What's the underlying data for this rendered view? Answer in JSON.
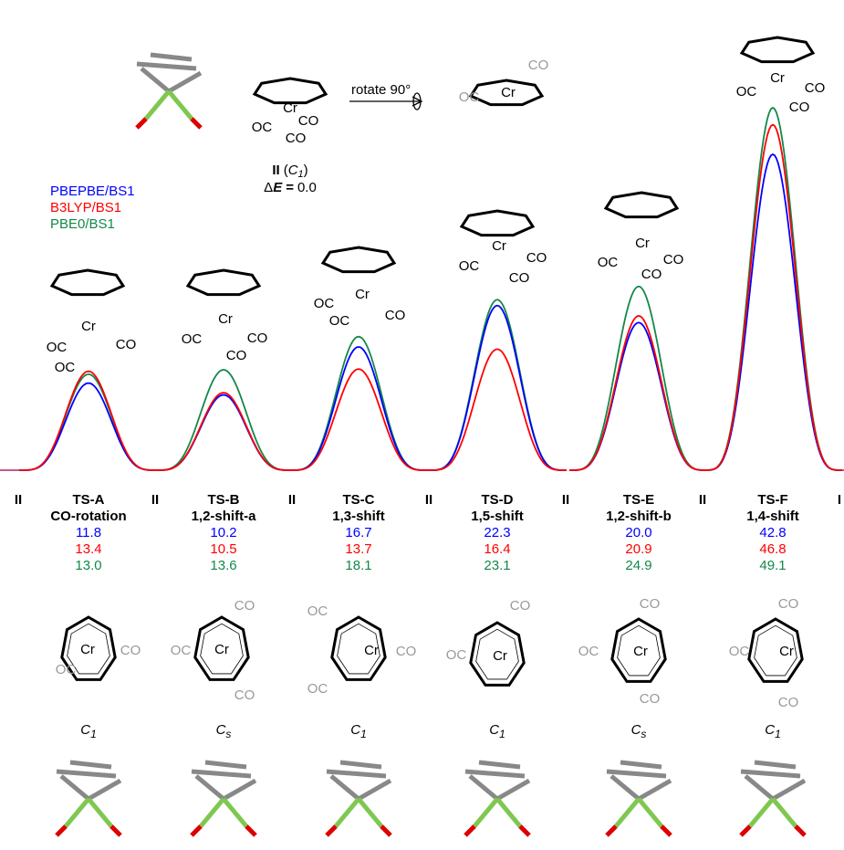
{
  "chart_data": {
    "type": "energy-profile",
    "ylim": [
      0,
      63.7
    ],
    "categories": [
      "TS-A",
      "TS-B",
      "TS-C",
      "TS-D",
      "TS-E",
      "TS-F"
    ],
    "subtitles": [
      "CO-rotation",
      "1,2-shift-a",
      "1,3-shift",
      "1,5-shift",
      "1,2-shift-b",
      "1,4-shift"
    ],
    "minima": [
      "II",
      "II",
      "II",
      "II",
      "II",
      "II",
      "I"
    ],
    "series": [
      {
        "name": "PBE0/BS1",
        "color": "#13884a",
        "values": [
          13.0,
          13.6,
          18.1,
          23.1,
          24.9,
          49.1
        ],
        "value_labels": [
          "13.0",
          "13.6",
          "18.1",
          "23.1",
          "24.9",
          "49.1"
        ]
      },
      {
        "name": "PBEPBE/BS1",
        "color": "#0000ff",
        "values": [
          11.8,
          10.2,
          16.7,
          22.3,
          20.0,
          42.8
        ],
        "value_labels": [
          "11.8",
          "10.2",
          "16.7",
          "22.3",
          "20.0",
          "42.8"
        ]
      },
      {
        "name": "B3LYP/BS1",
        "color": "#ff0000",
        "values": [
          13.4,
          10.5,
          13.7,
          16.4,
          20.9,
          46.8
        ],
        "value_labels": [
          "13.4",
          "10.5",
          "13.7",
          "16.4",
          "20.9",
          "46.8"
        ]
      }
    ],
    "symmetry": [
      {
        "symbol": "C",
        "subscript": "1"
      },
      {
        "symbol": "C",
        "subscript": "s"
      },
      {
        "symbol": "C",
        "subscript": "1"
      },
      {
        "symbol": "C",
        "subscript": "1"
      },
      {
        "symbol": "C",
        "subscript": "s"
      },
      {
        "symbol": "C",
        "subscript": "1"
      }
    ]
  },
  "reference": {
    "name": "II",
    "open": "(",
    "symbol": "C",
    "subscript": "1",
    "close": ")",
    "energy_prefix": "Δ",
    "energy_symbol": "E",
    "energy_sign": "=",
    "energy_value": "0.0"
  },
  "rotate_label": "rotate 90°",
  "structures": [
    {
      "labels": [
        "OC",
        "Cr",
        "CO",
        "CO"
      ]
    },
    {
      "labels": [
        "OC",
        "Cr",
        "CO"
      ]
    },
    {
      "labels": [
        "OC",
        "Cr",
        "CO",
        "CO"
      ]
    },
    {
      "labels": [
        "OC",
        "Cr",
        "CO",
        "OC"
      ]
    },
    {
      "labels": [
        "OC",
        "Cr",
        "CO",
        "CO"
      ]
    },
    {
      "labels": [
        "OC",
        "Cr",
        "CO",
        "OC"
      ]
    },
    {
      "labels": [
        "OC",
        "Cr",
        "CO",
        "CO"
      ]
    },
    {
      "labels": [
        "OC",
        "Cr",
        "CO",
        "CO"
      ]
    },
    {
      "labels": [
        "Cr",
        "CO",
        "OC"
      ]
    },
    {
      "labels": [
        "OC",
        "Cr",
        "CO",
        "CO"
      ]
    },
    {
      "labels": [
        "OC",
        "Cr",
        "CO",
        "OC"
      ]
    },
    {
      "labels": [
        "OC",
        "Cr",
        "CO"
      ]
    },
    {
      "labels": [
        "OC",
        "Cr",
        "CO",
        "CO"
      ]
    },
    {
      "labels": [
        "CO",
        "OC",
        "Cr",
        "CO"
      ]
    }
  ]
}
